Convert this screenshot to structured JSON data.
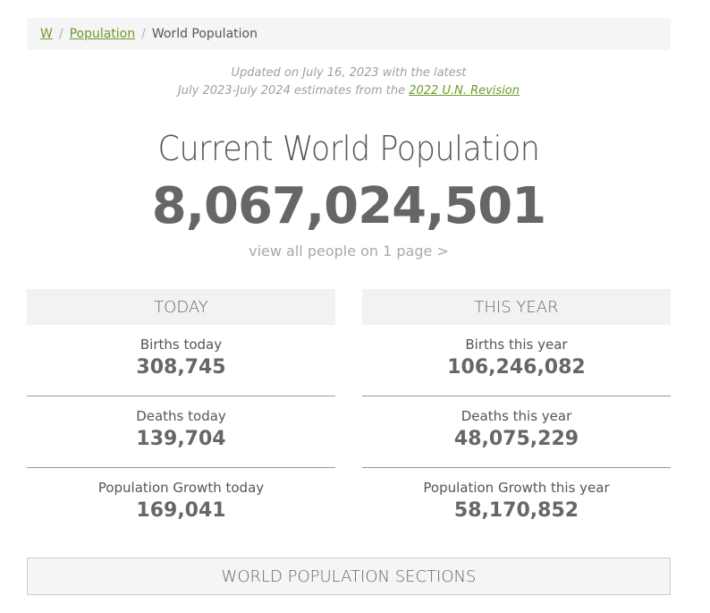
{
  "breadcrumb": {
    "home": "W",
    "population": "Population",
    "current": "World Population",
    "separator": "/"
  },
  "updated": {
    "line1": "Updated on July 16, 2023 with the latest",
    "line2_prefix": "July 2023-July 2024 estimates from the ",
    "link": "2022 U.N. Revision"
  },
  "title": "Current World Population",
  "population_count": "8,067,024,501",
  "view_all_link": "view all people on 1 page >",
  "today": {
    "heading": "TODAY",
    "births_label": "Births today",
    "births_value": "308,745",
    "deaths_label": "Deaths today",
    "deaths_value": "139,704",
    "growth_label": "Population Growth today",
    "growth_value": "169,041"
  },
  "this_year": {
    "heading": "THIS YEAR",
    "births_label": "Births this year",
    "births_value": "106,246,082",
    "deaths_label": "Deaths this year",
    "deaths_value": "48,075,229",
    "growth_label": "Population Growth this year",
    "growth_value": "58,170,852"
  },
  "sections_button": "WORLD POPULATION SECTIONS",
  "colors": {
    "link": "#6b9b2a",
    "muted": "#a0a0a0",
    "panel": "#f2f2f2"
  }
}
